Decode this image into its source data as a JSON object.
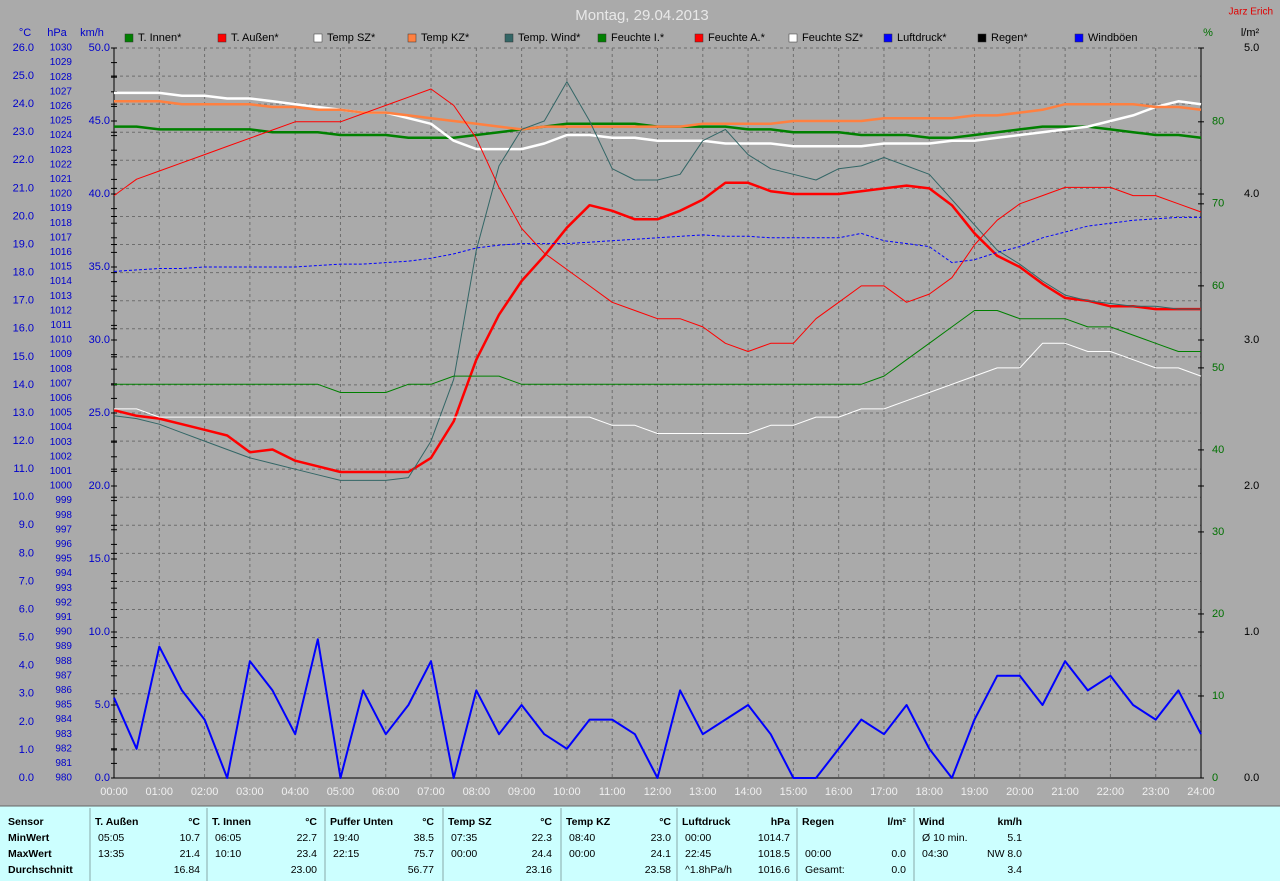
{
  "chart_data": {
    "type": "line",
    "title": "Montag, 29.04.2013",
    "author": "Jarz Erich",
    "x": [
      0,
      0.5,
      1,
      1.5,
      2,
      2.5,
      3,
      3.5,
      4,
      4.5,
      5,
      5.5,
      6,
      6.5,
      7,
      7.5,
      8,
      8.5,
      9,
      9.5,
      10,
      10.5,
      11,
      11.5,
      12,
      12.5,
      13,
      13.5,
      14,
      14.5,
      15,
      15.5,
      16,
      16.5,
      17,
      17.5,
      18,
      18.5,
      19,
      19.5,
      20,
      20.5,
      21,
      21.5,
      22,
      22.5,
      23,
      23.5,
      24
    ],
    "xlim": [
      0,
      24
    ],
    "xticks": [
      {
        "value": 0,
        "label": "00:00"
      },
      {
        "value": 1,
        "label": "01:00"
      },
      {
        "value": 2,
        "label": "02:00"
      },
      {
        "value": 3,
        "label": "03:00"
      },
      {
        "value": 4,
        "label": "04:00"
      },
      {
        "value": 5,
        "label": "05:00"
      },
      {
        "value": 6,
        "label": "06:00"
      },
      {
        "value": 7,
        "label": "07:00"
      },
      {
        "value": 8,
        "label": "08:00"
      },
      {
        "value": 9,
        "label": "09:00"
      },
      {
        "value": 10,
        "label": "10:00"
      },
      {
        "value": 11,
        "label": "11:00"
      },
      {
        "value": 12,
        "label": "12:00"
      },
      {
        "value": 13,
        "label": "13:00"
      },
      {
        "value": 14,
        "label": "14:00"
      },
      {
        "value": 15,
        "label": "15:00"
      },
      {
        "value": 16,
        "label": "16:00"
      },
      {
        "value": 17,
        "label": "17:00"
      },
      {
        "value": 18,
        "label": "18:00"
      },
      {
        "value": 19,
        "label": "19:00"
      },
      {
        "value": 20,
        "label": "20:00"
      },
      {
        "value": 21,
        "label": "21:00"
      },
      {
        "value": 22,
        "label": "22:00"
      },
      {
        "value": 23,
        "label": "23:00"
      },
      {
        "value": 24,
        "label": "24:00"
      }
    ],
    "ylabel": "°C",
    "ylim": [
      0,
      26
    ],
    "yticks": [
      {
        "value": 0,
        "label": "0.0"
      },
      {
        "value": 1,
        "label": "1.0"
      },
      {
        "value": 2,
        "label": "2.0"
      },
      {
        "value": 3,
        "label": "3.0"
      },
      {
        "value": 4,
        "label": "4.0"
      },
      {
        "value": 5,
        "label": "5.0"
      },
      {
        "value": 6,
        "label": "6.0"
      },
      {
        "value": 7,
        "label": "7.0"
      },
      {
        "value": 8,
        "label": "8.0"
      },
      {
        "value": 9,
        "label": "9.0"
      },
      {
        "value": 10,
        "label": "10.0"
      },
      {
        "value": 11,
        "label": "11.0"
      },
      {
        "value": 12,
        "label": "12.0"
      },
      {
        "value": 13,
        "label": "13.0"
      },
      {
        "value": 14,
        "label": "14.0"
      },
      {
        "value": 15,
        "label": "15.0"
      },
      {
        "value": 16,
        "label": "16.0"
      },
      {
        "value": 17,
        "label": "17.0"
      },
      {
        "value": 18,
        "label": "18.0"
      },
      {
        "value": 19,
        "label": "19.0"
      },
      {
        "value": 20,
        "label": "20.0"
      },
      {
        "value": 21,
        "label": "21.0"
      },
      {
        "value": 22,
        "label": "22.0"
      },
      {
        "value": 23,
        "label": "23.0"
      },
      {
        "value": 24,
        "label": "24.0"
      },
      {
        "value": 25,
        "label": "25.0"
      },
      {
        "value": 26,
        "label": "26.0"
      }
    ],
    "y2label": "hPa",
    "y2lim": [
      980,
      1030
    ],
    "y2ticks": [
      980,
      981,
      982,
      983,
      984,
      985,
      986,
      987,
      988,
      989,
      990,
      991,
      992,
      993,
      994,
      995,
      996,
      997,
      998,
      999,
      1000,
      1001,
      1002,
      1003,
      1004,
      1005,
      1006,
      1007,
      1008,
      1009,
      1010,
      1011,
      1012,
      1013,
      1014,
      1015,
      1016,
      1017,
      1018,
      1019,
      1020,
      1021,
      1022,
      1023,
      1024,
      1025,
      1026,
      1027,
      1028,
      1029,
      1030
    ],
    "y3label": "km/h",
    "y3lim": [
      0,
      50
    ],
    "y3ticks": [
      {
        "value": 0,
        "label": "0.0"
      },
      {
        "value": 5,
        "label": "5.0"
      },
      {
        "value": 10,
        "label": "10.0"
      },
      {
        "value": 15,
        "label": "15.0"
      },
      {
        "value": 20,
        "label": "20.0"
      },
      {
        "value": 25,
        "label": "25.0"
      },
      {
        "value": 30,
        "label": "30.0"
      },
      {
        "value": 35,
        "label": "35.0"
      },
      {
        "value": 40,
        "label": "40.0"
      },
      {
        "value": 45,
        "label": "45.0"
      },
      {
        "value": 50,
        "label": "50.0"
      }
    ],
    "y4label": "%",
    "y4lim": [
      0,
      89
    ],
    "y4ticks": [
      0,
      10,
      20,
      30,
      40,
      50,
      60,
      70,
      80
    ],
    "y5label": "l/m²",
    "y5lim": [
      0,
      5
    ],
    "y5ticks": [
      {
        "value": 0,
        "label": "0.0"
      },
      {
        "value": 1,
        "label": "1.0"
      },
      {
        "value": 2,
        "label": "2.0"
      },
      {
        "value": 3,
        "label": "3.0"
      },
      {
        "value": 4,
        "label": "4.0"
      },
      {
        "value": 5,
        "label": "5.0"
      }
    ],
    "grid": true,
    "series": [
      {
        "name": "T. Innen*",
        "color": "#008000",
        "axis": "y",
        "values": [
          23.2,
          23.2,
          23.1,
          23.1,
          23.1,
          23.1,
          23.1,
          23.0,
          23.0,
          23.0,
          22.9,
          22.9,
          22.9,
          22.8,
          22.8,
          22.8,
          22.9,
          23.0,
          23.1,
          23.2,
          23.3,
          23.3,
          23.3,
          23.3,
          23.2,
          23.2,
          23.2,
          23.2,
          23.1,
          23.1,
          23.0,
          23.0,
          23.0,
          22.9,
          22.9,
          22.9,
          22.8,
          22.8,
          22.9,
          23.0,
          23.1,
          23.2,
          23.2,
          23.2,
          23.1,
          23.0,
          22.9,
          22.9,
          22.8
        ]
      },
      {
        "name": "T. Außen*",
        "color": "#ff0000",
        "axis": "y",
        "values": [
          13.1,
          12.9,
          12.8,
          12.6,
          12.4,
          12.2,
          11.6,
          11.7,
          11.3,
          11.1,
          10.9,
          10.9,
          10.9,
          10.9,
          11.4,
          12.7,
          14.9,
          16.5,
          17.7,
          18.6,
          19.6,
          20.4,
          20.2,
          19.9,
          19.9,
          20.2,
          20.6,
          21.2,
          21.2,
          20.9,
          20.8,
          20.8,
          20.8,
          20.9,
          21.0,
          21.1,
          21.0,
          20.4,
          19.4,
          18.6,
          18.2,
          17.6,
          17.1,
          17.0,
          16.8,
          16.8,
          16.7,
          16.7,
          16.7
        ]
      },
      {
        "name": "Temp SZ*",
        "color": "#ffffff",
        "axis": "y",
        "values": [
          24.4,
          24.4,
          24.4,
          24.3,
          24.3,
          24.2,
          24.2,
          24.1,
          24.0,
          23.9,
          23.8,
          23.7,
          23.7,
          23.5,
          23.3,
          22.7,
          22.4,
          22.4,
          22.4,
          22.6,
          22.9,
          22.9,
          22.8,
          22.8,
          22.7,
          22.7,
          22.7,
          22.6,
          22.6,
          22.6,
          22.5,
          22.5,
          22.5,
          22.5,
          22.6,
          22.6,
          22.6,
          22.7,
          22.7,
          22.8,
          22.9,
          23.0,
          23.1,
          23.2,
          23.4,
          23.6,
          23.9,
          24.1,
          24.0
        ]
      },
      {
        "name": "Temp KZ*",
        "color": "#ff8040",
        "axis": "y",
        "values": [
          24.1,
          24.1,
          24.1,
          24.0,
          24.0,
          24.0,
          24.0,
          23.9,
          23.9,
          23.8,
          23.8,
          23.7,
          23.7,
          23.6,
          23.5,
          23.4,
          23.3,
          23.2,
          23.1,
          23.2,
          23.2,
          23.2,
          23.2,
          23.2,
          23.2,
          23.2,
          23.3,
          23.3,
          23.3,
          23.3,
          23.4,
          23.4,
          23.4,
          23.4,
          23.5,
          23.5,
          23.5,
          23.5,
          23.6,
          23.6,
          23.7,
          23.8,
          24.0,
          24.0,
          24.0,
          24.0,
          23.9,
          23.9,
          23.8
        ]
      },
      {
        "name": "Temp. Wind*",
        "color": "#336666",
        "axis": "y",
        "values": [
          12.9,
          12.8,
          12.6,
          12.3,
          12.0,
          11.7,
          11.4,
          11.2,
          11.0,
          10.8,
          10.6,
          10.6,
          10.6,
          10.7,
          12.0,
          14.2,
          18.8,
          21.8,
          23.1,
          23.4,
          24.8,
          23.4,
          21.7,
          21.3,
          21.3,
          21.5,
          22.7,
          23.1,
          22.2,
          21.7,
          21.5,
          21.3,
          21.7,
          21.8,
          22.1,
          21.8,
          21.5,
          20.6,
          19.7,
          18.8,
          18.3,
          17.7,
          17.2,
          17.0,
          16.9,
          16.8,
          16.8,
          16.7,
          16.7
        ]
      },
      {
        "name": "Feuchte I.*",
        "color": "#008000",
        "axis": "y4",
        "values": [
          48,
          48,
          48,
          48,
          48,
          48,
          48,
          48,
          48,
          48,
          47,
          47,
          47,
          48,
          48,
          49,
          49,
          49,
          48,
          48,
          48,
          48,
          48,
          48,
          48,
          48,
          48,
          48,
          48,
          48,
          48,
          48,
          48,
          48,
          49,
          51,
          53,
          55,
          57,
          57,
          56,
          56,
          56,
          55,
          55,
          54,
          53,
          52,
          52
        ]
      },
      {
        "name": "Feuchte A.*",
        "color": "#ff0000",
        "axis": "y4",
        "values": [
          71,
          73,
          74,
          75,
          76,
          77,
          78,
          79,
          80,
          80,
          80,
          81,
          82,
          83,
          84,
          82,
          78,
          72,
          67,
          64,
          62,
          60,
          58,
          57,
          56,
          56,
          55,
          53,
          52,
          53,
          53,
          56,
          58,
          60,
          60,
          58,
          59,
          61,
          65,
          68,
          70,
          71,
          72,
          72,
          72,
          71,
          71,
          70,
          69
        ]
      },
      {
        "name": "Feuchte SZ*",
        "color": "#ffffff",
        "axis": "y4",
        "values": [
          45,
          45,
          44,
          44,
          44,
          44,
          44,
          44,
          44,
          44,
          44,
          44,
          44,
          44,
          44,
          44,
          44,
          44,
          44,
          44,
          44,
          44,
          43,
          43,
          42,
          42,
          42,
          42,
          42,
          43,
          43,
          44,
          44,
          45,
          45,
          46,
          47,
          48,
          49,
          50,
          50,
          53,
          53,
          52,
          52,
          51,
          50,
          50,
          49
        ]
      },
      {
        "name": "Luftdruck*",
        "color": "#0000ff",
        "axis": "y2",
        "values": [
          1014.7,
          1014.8,
          1014.9,
          1014.9,
          1015.0,
          1015.0,
          1015.0,
          1015.0,
          1015.0,
          1015.1,
          1015.2,
          1015.2,
          1015.3,
          1015.4,
          1015.6,
          1015.9,
          1016.3,
          1016.5,
          1016.6,
          1016.6,
          1016.6,
          1016.7,
          1016.8,
          1016.9,
          1017.0,
          1017.1,
          1017.2,
          1017.1,
          1017.1,
          1017.0,
          1017.0,
          1017.0,
          1017.0,
          1017.3,
          1016.8,
          1016.6,
          1016.4,
          1015.3,
          1015.5,
          1016.0,
          1016.4,
          1017.0,
          1017.4,
          1017.8,
          1018.0,
          1018.2,
          1018.3,
          1018.4,
          1018.4
        ]
      },
      {
        "name": "Regen*",
        "color": "#000000",
        "axis": "y5",
        "values": [
          0,
          0,
          0,
          0,
          0,
          0,
          0,
          0,
          0,
          0,
          0,
          0,
          0,
          0,
          0,
          0,
          0,
          0,
          0,
          0,
          0,
          0,
          0,
          0,
          0,
          0,
          0,
          0,
          0,
          0,
          0,
          0,
          0,
          0,
          0,
          0,
          0,
          0,
          0,
          0,
          0,
          0,
          0,
          0,
          0,
          0,
          0,
          0,
          0
        ]
      },
      {
        "name": "Windböen",
        "color": "#0000ff",
        "axis": "y3",
        "values": [
          5.5,
          2,
          9,
          6,
          4,
          0,
          8,
          6,
          3,
          9.5,
          0,
          6,
          3,
          5,
          8,
          0,
          6,
          3,
          5,
          3,
          2,
          4,
          4,
          3,
          0,
          6,
          3,
          4,
          5,
          3,
          0,
          0,
          2,
          4,
          3,
          5,
          2,
          0,
          4,
          7,
          7,
          5,
          8,
          6,
          7,
          5,
          4,
          6,
          3
        ]
      }
    ]
  },
  "table": {
    "row_labels": [
      "Sensor",
      "MinWert",
      "MaxWert",
      "Durchschnitt"
    ],
    "columns": [
      {
        "name": "T. Außen",
        "unit": "°C",
        "rows": [
          [
            "05:05",
            "10.7"
          ],
          [
            "13:35",
            "21.4"
          ],
          [
            null,
            "16.84"
          ]
        ]
      },
      {
        "name": "T. Innen",
        "unit": "°C",
        "rows": [
          [
            "06:05",
            "22.7"
          ],
          [
            "10:10",
            "23.4"
          ],
          [
            null,
            "23.00"
          ]
        ]
      },
      {
        "name": "Puffer Unten",
        "unit": "°C",
        "rows": [
          [
            "19:40",
            "38.5"
          ],
          [
            "22:15",
            "75.7"
          ],
          [
            null,
            "56.77"
          ]
        ]
      },
      {
        "name": "Temp SZ",
        "unit": "°C",
        "rows": [
          [
            "07:35",
            "22.3"
          ],
          [
            "00:00",
            "24.4"
          ],
          [
            null,
            "23.16"
          ]
        ]
      },
      {
        "name": "Temp KZ",
        "unit": "°C",
        "rows": [
          [
            "08:40",
            "23.0"
          ],
          [
            "00:00",
            "24.1"
          ],
          [
            null,
            "23.58"
          ]
        ]
      },
      {
        "name": "Luftdruck",
        "unit": "hPa",
        "rows": [
          [
            "00:00",
            "1014.7"
          ],
          [
            "22:45",
            "1018.5"
          ],
          [
            "^1.8hPa/h",
            "1016.6"
          ]
        ]
      },
      {
        "name": "Regen",
        "unit": "l/m²",
        "rows": [
          [
            null,
            null
          ],
          [
            "00:00",
            "0.0"
          ],
          [
            "Gesamt:",
            "0.0"
          ]
        ]
      },
      {
        "name": "Wind",
        "unit": "km/h",
        "rows": [
          [
            "Ø 10 min.",
            "5.1"
          ],
          [
            "04:30",
            "NW 8.0"
          ],
          [
            null,
            "3.4"
          ]
        ]
      }
    ]
  }
}
